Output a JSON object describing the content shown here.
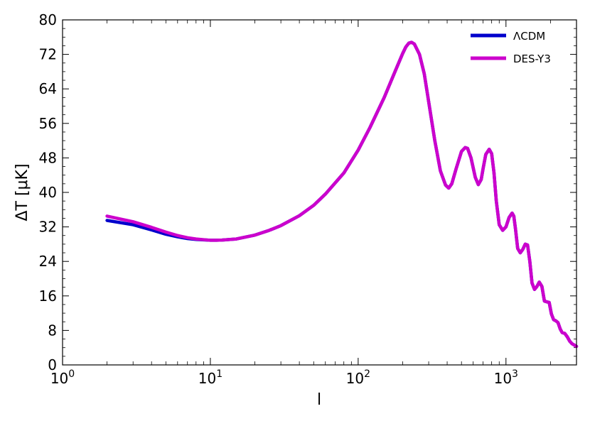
{
  "chart_data": {
    "type": "line",
    "xlabel": "l",
    "ylabel": "ΔT [μK]",
    "xscale": "log",
    "xlim": [
      1,
      3000
    ],
    "ylim": [
      0,
      80
    ],
    "yticks": [
      "0",
      "8",
      "16",
      "24",
      "32",
      "40",
      "48",
      "56",
      "64",
      "72",
      "80"
    ],
    "xticks": [
      {
        "base": "10",
        "exp": "0"
      },
      {
        "base": "10",
        "exp": "1"
      },
      {
        "base": "10",
        "exp": "2"
      },
      {
        "base": "10",
        "exp": "3"
      }
    ],
    "grid": false,
    "legend": "top-right",
    "series": [
      {
        "name": "ΛCDM",
        "color": "#0000cc",
        "x": [
          2,
          3,
          4,
          5,
          6,
          7,
          8,
          10,
          11,
          12,
          15,
          20,
          25,
          30,
          40,
          50,
          60,
          80,
          100,
          120,
          150,
          180,
          200,
          210,
          220,
          230,
          240,
          260,
          280,
          300,
          330,
          360,
          390,
          410,
          430,
          460,
          500,
          530,
          550,
          580,
          620,
          650,
          680,
          700,
          730,
          770,
          800,
          830,
          860,
          900,
          950,
          1000,
          1050,
          1100,
          1130,
          1160,
          1200,
          1250,
          1300,
          1350,
          1400,
          1450,
          1500,
          1560,
          1620,
          1680,
          1750,
          1820,
          1900,
          1960,
          2030,
          2100,
          2180,
          2250,
          2330,
          2400,
          2500,
          2600,
          2700,
          2800,
          2900,
          3000
        ],
        "y": [
          33.5,
          32.5,
          31.3,
          30.3,
          29.7,
          29.3,
          29.1,
          28.9,
          28.9,
          28.95,
          29.2,
          30.1,
          31.2,
          32.3,
          34.6,
          37.0,
          39.6,
          44.5,
          49.8,
          55.0,
          62.0,
          68.5,
          72.2,
          73.7,
          74.6,
          74.8,
          74.4,
          72.0,
          67.5,
          61.0,
          52.0,
          45.0,
          41.7,
          41.0,
          42.0,
          45.5,
          49.5,
          50.4,
          50.2,
          48.0,
          43.5,
          41.8,
          43.0,
          45.5,
          48.8,
          50.0,
          49.0,
          44.5,
          38.0,
          32.5,
          31.2,
          32.0,
          34.2,
          35.2,
          34.5,
          31.5,
          27.0,
          26.0,
          26.8,
          28.0,
          27.8,
          24.0,
          19.0,
          17.5,
          18.2,
          19.2,
          18.2,
          14.8,
          14.6,
          14.5,
          11.8,
          10.5,
          10.2,
          9.8,
          8.3,
          7.5,
          7.3,
          6.5,
          5.5,
          4.9,
          4.6,
          4.3
        ]
      },
      {
        "name": "DES-Y3",
        "color": "#cc00cc",
        "x": [
          2,
          3,
          4,
          5,
          6,
          7,
          8,
          10,
          11,
          12,
          15,
          20,
          25,
          30,
          40,
          50,
          60,
          80,
          100,
          120,
          150,
          180,
          200,
          210,
          220,
          230,
          240,
          260,
          280,
          300,
          330,
          360,
          390,
          410,
          430,
          460,
          500,
          530,
          550,
          580,
          620,
          650,
          680,
          700,
          730,
          770,
          800,
          830,
          860,
          900,
          950,
          1000,
          1050,
          1100,
          1130,
          1160,
          1200,
          1250,
          1300,
          1350,
          1400,
          1450,
          1500,
          1560,
          1620,
          1680,
          1750,
          1820,
          1900,
          1960,
          2030,
          2100,
          2180,
          2250,
          2330,
          2400,
          2500,
          2600,
          2700,
          2800,
          2900,
          3000
        ],
        "y": [
          34.5,
          33.2,
          31.9,
          30.8,
          30.0,
          29.5,
          29.2,
          28.9,
          28.9,
          28.95,
          29.2,
          30.1,
          31.2,
          32.3,
          34.6,
          37.0,
          39.6,
          44.5,
          49.8,
          55.0,
          62.0,
          68.5,
          72.2,
          73.7,
          74.6,
          74.8,
          74.4,
          72.0,
          67.5,
          61.0,
          52.0,
          45.0,
          41.7,
          41.0,
          42.0,
          45.5,
          49.5,
          50.4,
          50.2,
          48.0,
          43.5,
          41.8,
          43.0,
          45.5,
          48.8,
          50.0,
          49.0,
          44.5,
          38.0,
          32.5,
          31.2,
          32.0,
          34.2,
          35.2,
          34.5,
          31.5,
          27.0,
          26.0,
          26.8,
          28.0,
          27.8,
          24.0,
          19.0,
          17.5,
          18.2,
          19.2,
          18.2,
          14.8,
          14.6,
          14.5,
          11.8,
          10.5,
          10.2,
          9.8,
          8.3,
          7.5,
          7.3,
          6.5,
          5.5,
          4.9,
          4.6,
          4.3
        ]
      }
    ]
  }
}
